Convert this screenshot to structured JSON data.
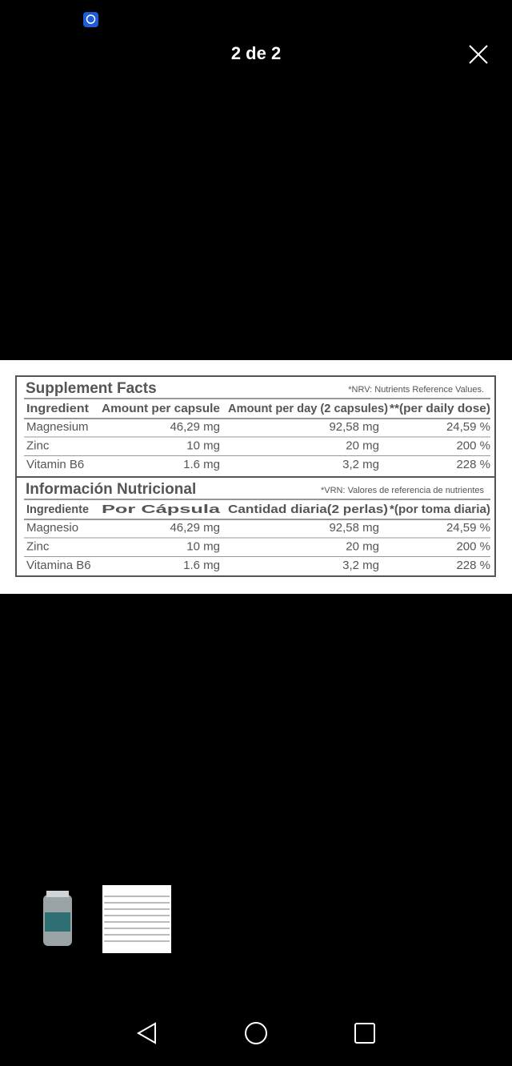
{
  "header": {
    "counter": "2 de 2"
  },
  "image": {
    "sections": [
      {
        "title": "Supplement Facts",
        "note": "*NRV: Nutrients Reference Values.",
        "columns": [
          "Ingredient",
          "Amount per capsule",
          "Amount per day (2 capsules)",
          "**(per daily dose)"
        ],
        "rows": [
          [
            "Magnesium",
            "46,29 mg",
            "92,58 mg",
            "24,59 %"
          ],
          [
            "Zinc",
            "10 mg",
            "20 mg",
            "200 %"
          ],
          [
            "Vitamin B6",
            "1.6 mg",
            "3,2 mg",
            "228 %"
          ]
        ]
      },
      {
        "title": "Información Nutricional",
        "note": "*VRN: Valores de referencia de nutrientes",
        "columns": [
          "Ingrediente",
          "Por Cápsula",
          "Cantidad diaria(2 perlas)",
          "*(por toma diaria)"
        ],
        "rows": [
          [
            "Magnesio",
            "46,29 mg",
            "92,58 mg",
            "24,59 %"
          ],
          [
            "Zinc",
            "10 mg",
            "20 mg",
            "200 %"
          ],
          [
            "Vitamina B6",
            "1.6 mg",
            "3,2 mg",
            "228 %"
          ]
        ]
      }
    ]
  }
}
